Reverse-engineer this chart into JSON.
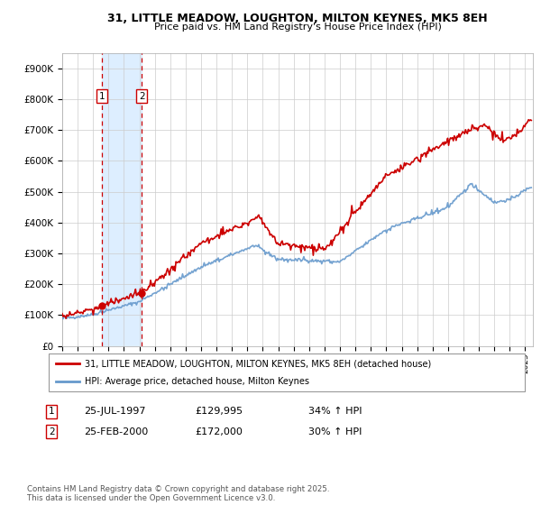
{
  "title": "31, LITTLE MEADOW, LOUGHTON, MILTON KEYNES, MK5 8EH",
  "subtitle": "Price paid vs. HM Land Registry's House Price Index (HPI)",
  "legend_line1": "31, LITTLE MEADOW, LOUGHTON, MILTON KEYNES, MK5 8EH (detached house)",
  "legend_line2": "HPI: Average price, detached house, Milton Keynes",
  "transactions": [
    {
      "label": "1",
      "date": "25-JUL-1997",
      "price": "£129,995",
      "hpi": "34% ↑ HPI"
    },
    {
      "label": "2",
      "date": "25-FEB-2000",
      "price": "£172,000",
      "hpi": "30% ↑ HPI"
    }
  ],
  "footnote": "Contains HM Land Registry data © Crown copyright and database right 2025.\nThis data is licensed under the Open Government Licence v3.0.",
  "red_color": "#cc0000",
  "blue_color": "#6699cc",
  "shading_color": "#ddeeff",
  "background_color": "#ffffff",
  "grid_color": "#cccccc",
  "ylim": [
    0,
    950000
  ],
  "ytick_interval": 100000,
  "transaction1_x": 1997.57,
  "transaction2_x": 2000.15,
  "transaction1_price": 129995,
  "transaction2_price": 172000,
  "xmin": 1995,
  "xmax": 2025.5
}
